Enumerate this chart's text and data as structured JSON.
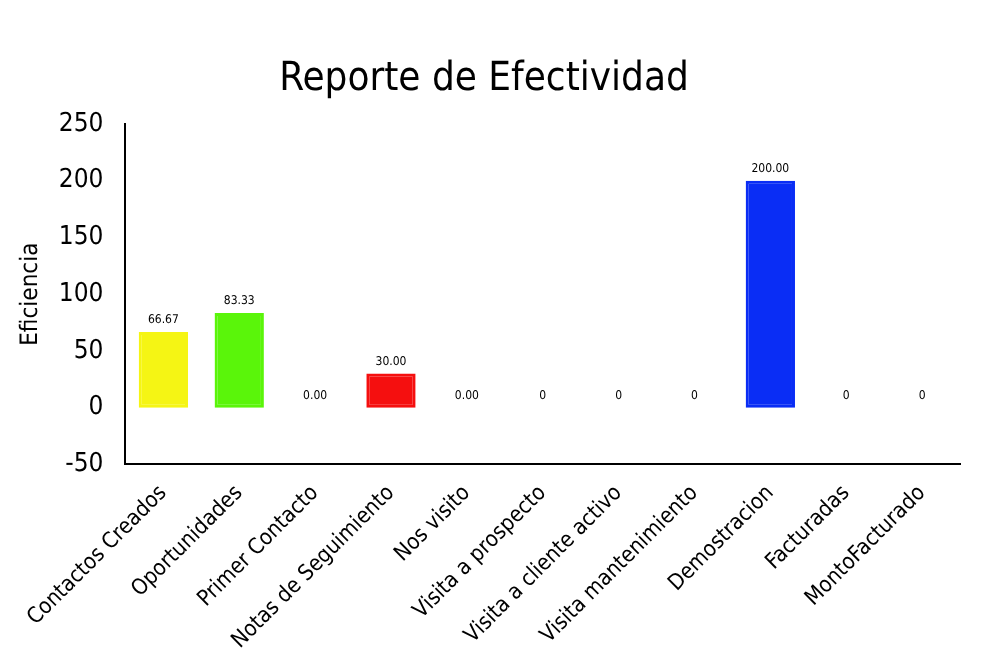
{
  "chart_data": {
    "type": "bar",
    "title": "Reporte de Efectividad",
    "ylabel": "Eficiencia",
    "categories": [
      "Contactos Creados",
      "Oportunidades",
      "Primer Contacto",
      "Notas de Seguimiento",
      "Nos visito",
      "Visita a prospecto",
      "Visita a cliente activo",
      "Visita mantenimiento",
      "Demostracion",
      "Facturadas",
      "MontoFacturado"
    ],
    "values": [
      66.67,
      83.33,
      0,
      30,
      0,
      0,
      0,
      0,
      200,
      0,
      0
    ],
    "colors": [
      "#f5f514",
      "#5af50a",
      "#ff6060",
      "#f50f0f",
      "#ff6060",
      "#ff6060",
      "#ff6060",
      "#ff6060",
      "#0a2df5",
      "#ff6060",
      "#ff6060"
    ],
    "value_labels": [
      "66.67",
      "83.33",
      "0.00",
      "30.00",
      "0.00",
      "0",
      "0",
      "0",
      "200.00",
      "0",
      "0"
    ],
    "ylim": [
      -50,
      250
    ],
    "yticks": [
      -50,
      0,
      50,
      100,
      150,
      200,
      250
    ],
    "grid": false,
    "legend": false
  }
}
